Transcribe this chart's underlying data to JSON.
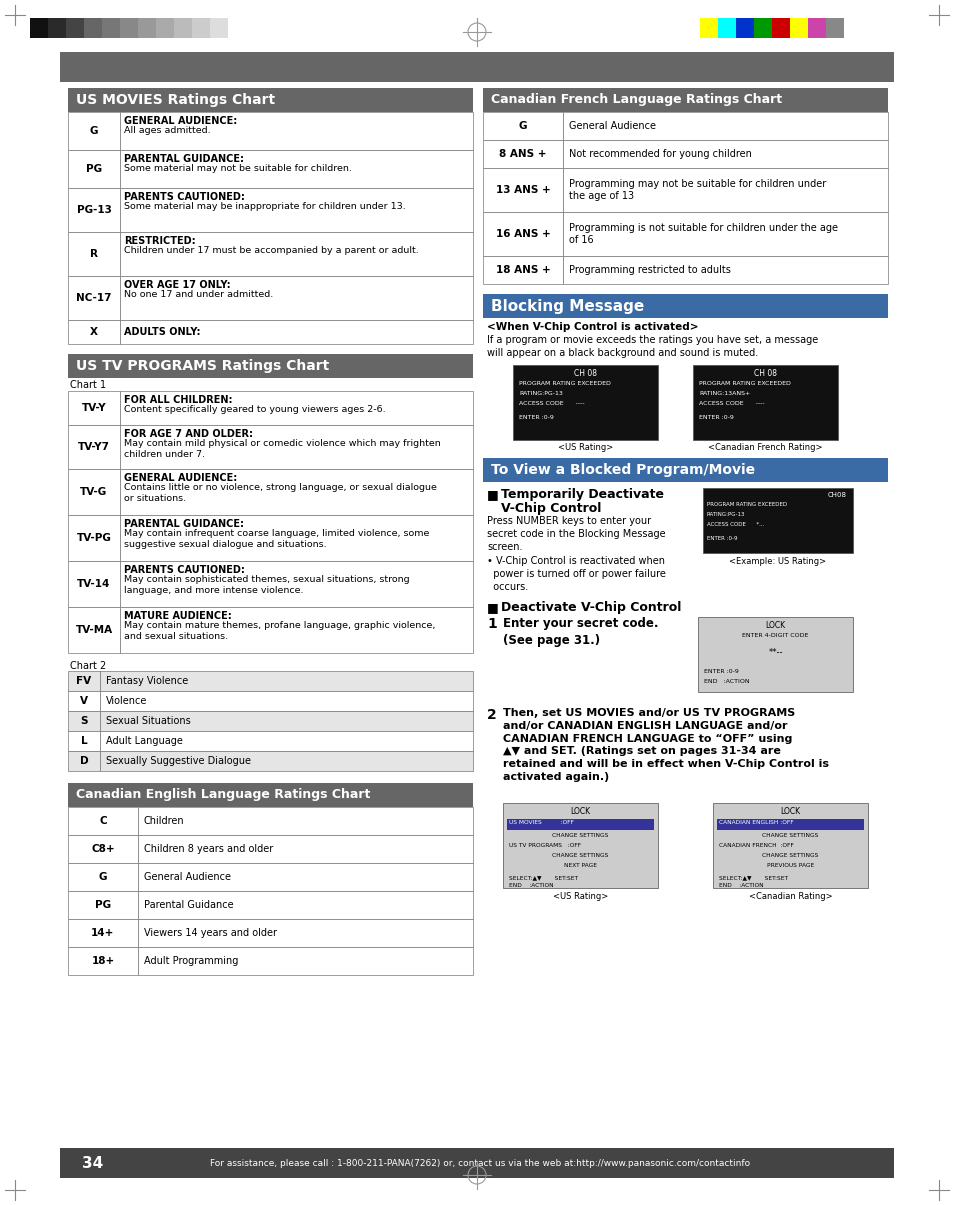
{
  "page_bg": "#ffffff",
  "gray_header_color": "#666666",
  "blue_header_color": "#4477aa",
  "footer_bg": "#444444",
  "footer_text": "For assistance, please call : 1-800-211-PANA(7262) or, contact us via the web at:http://www.panasonic.com/contactinfo",
  "page_number": "34",
  "us_movies_title": "US MOVIES Ratings Chart",
  "us_movies_rows": [
    [
      "G",
      "GENERAL AUDIENCE:",
      "All ages admitted."
    ],
    [
      "PG",
      "PARENTAL GUIDANCE:",
      "Some material may not be suitable for children."
    ],
    [
      "PG-13",
      "PARENTS CAUTIONED:",
      "Some material may be inappropriate for children under 13."
    ],
    [
      "R",
      "RESTRICTED:",
      "Children under 17 must be accompanied by a parent or adult."
    ],
    [
      "NC-17",
      "OVER AGE 17 ONLY:",
      "No one 17 and under admitted."
    ],
    [
      "X",
      "ADULTS ONLY:",
      ""
    ]
  ],
  "us_tv_title": "US TV PROGRAMS Ratings Chart",
  "us_tv_chart1_label": "Chart 1",
  "us_tv_chart1_rows": [
    [
      "TV-Y",
      "FOR ALL CHILDREN:",
      "Content specifically geared to young viewers ages 2-6."
    ],
    [
      "TV-Y7",
      "FOR AGE 7 AND OLDER:",
      "May contain mild physical or comedic violence which may frighten\nchildren under 7."
    ],
    [
      "TV-G",
      "GENERAL AUDIENCE:",
      "Contains little or no violence, strong language, or sexual dialogue\nor situations."
    ],
    [
      "TV-PG",
      "PARENTAL GUIDANCE:",
      "May contain infrequent coarse language, limited violence, some\nsuggestive sexual dialogue and situations."
    ],
    [
      "TV-14",
      "PARENTS CAUTIONED:",
      "May contain sophisticated themes, sexual situations, strong\nlanguage, and more intense violence."
    ],
    [
      "TV-MA",
      "MATURE AUDIENCE:",
      "May contain mature themes, profane language, graphic violence,\nand sexual situations."
    ]
  ],
  "us_tv_chart2_label": "Chart 2",
  "us_tv_chart2_rows": [
    [
      "FV",
      "Fantasy Violence"
    ],
    [
      "V",
      "Violence"
    ],
    [
      "S",
      "Sexual Situations"
    ],
    [
      "L",
      "Adult Language"
    ],
    [
      "D",
      "Sexually Suggestive Dialogue"
    ]
  ],
  "canadian_english_title": "Canadian English Language Ratings Chart",
  "canadian_english_rows": [
    [
      "C",
      "Children"
    ],
    [
      "C8+",
      "Children 8 years and older"
    ],
    [
      "G",
      "General Audience"
    ],
    [
      "PG",
      "Parental Guidance"
    ],
    [
      "14+",
      "Viewers 14 years and older"
    ],
    [
      "18+",
      "Adult Programming"
    ]
  ],
  "canadian_french_title": "Canadian French Language Ratings Chart",
  "canadian_french_rows": [
    [
      "G",
      "General Audience"
    ],
    [
      "8 ANS +",
      "Not recommended for young children"
    ],
    [
      "13 ANS +",
      "Programming may not be suitable for children under\nthe age of 13"
    ],
    [
      "16 ANS +",
      "Programming is not suitable for children under the age\nof 16"
    ],
    [
      "18 ANS +",
      "Programming restricted to adults"
    ]
  ],
  "blocking_title": "Blocking Message",
  "blocking_subtitle": "<When V-Chip Control is activated>",
  "blocking_text": "If a program or movie exceeds the ratings you have set, a message\nwill appear on a black background and sound is muted.",
  "to_view_title": "To View a Blocked Program/Movie",
  "temp_deactivate_title_line1": "Temporarily Deactivate",
  "temp_deactivate_title_line2": "V-Chip Control",
  "temp_deactivate_text": "Press NUMBER keys to enter your\nsecret code in the Blocking Message\nscreen.\n• V-Chip Control is reactivated when\n  power is turned off or power failure\n  occurs.",
  "deactivate_title": "Deactivate V-Chip Control",
  "deactivate_step1_text": "Enter your secret code.\n(See page 31.)",
  "deactivate_step2_text": "Then, set US MOVIES and/or US TV PROGRAMS\nand/or CANADIAN ENGLISH LANGUAGE and/or\nCANADIAN FRENCH LANGUAGE to “OFF” using\n▲▼ and SET. (Ratings set on pages 31-34 are\nretained and will be in effect when V-Chip Control is\nactivated again.)"
}
